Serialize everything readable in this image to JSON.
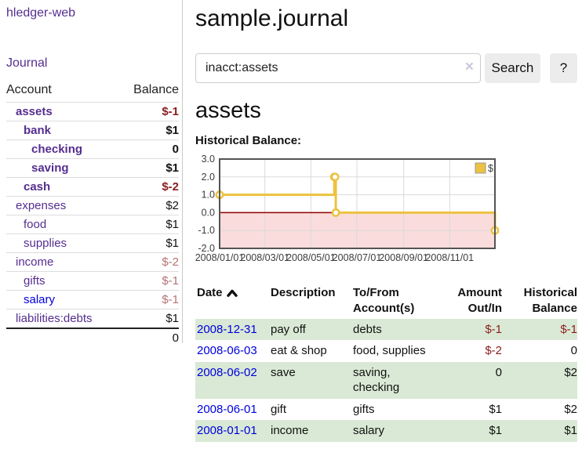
{
  "app": {
    "title": "hledger-web"
  },
  "sidebar": {
    "journal_label": "Journal",
    "table": {
      "headers": [
        "Account",
        "Balance"
      ],
      "rows": [
        {
          "name": "assets",
          "balance": "$-1",
          "level": 1,
          "bold": true,
          "blue": false
        },
        {
          "name": "bank",
          "balance": "$1",
          "level": 2,
          "bold": true,
          "blue": false
        },
        {
          "name": "checking",
          "balance": "0",
          "level": 3,
          "bold": true,
          "blue": false
        },
        {
          "name": "saving",
          "balance": "$1",
          "level": 3,
          "bold": true,
          "blue": false
        },
        {
          "name": "cash",
          "balance": "$-2",
          "level": 2,
          "bold": true,
          "blue": false
        },
        {
          "name": "expenses",
          "balance": "$2",
          "level": 1,
          "bold": false,
          "blue": false
        },
        {
          "name": "food",
          "balance": "$1",
          "level": 2,
          "bold": false,
          "blue": false
        },
        {
          "name": "supplies",
          "balance": "$1",
          "level": 2,
          "bold": false,
          "blue": false
        },
        {
          "name": "income",
          "balance": "$-2",
          "level": 1,
          "bold": false,
          "blue": false
        },
        {
          "name": "gifts",
          "balance": "$-1",
          "level": 2,
          "bold": false,
          "blue": false
        },
        {
          "name": "salary",
          "balance": "$-1",
          "level": 2,
          "bold": false,
          "blue": true
        },
        {
          "name": "liabilities:debts",
          "balance": "$1",
          "level": 1,
          "bold": false,
          "blue": false
        }
      ],
      "total": "0"
    }
  },
  "main": {
    "title": "sample.journal",
    "search": {
      "value": "inacct:assets",
      "clear_icon": "×",
      "button_label": "Search",
      "help_label": "?"
    },
    "account_heading": "assets",
    "chart_label": "Historical Balance:"
  },
  "chart_data": {
    "type": "line",
    "style": "steps",
    "title": "Historical Balance",
    "series": [
      {
        "name": "$",
        "color": "#edc240",
        "points": [
          [
            "2008-01-01",
            1
          ],
          [
            "2008-06-01",
            2
          ],
          [
            "2008-06-02",
            2
          ],
          [
            "2008-06-03",
            0
          ],
          [
            "2008-12-31",
            -1
          ]
        ]
      }
    ],
    "x_tick_labels": [
      "2008/01/01",
      "2008/03/01",
      "2008/05/01",
      "2008/07/01",
      "2008/09/01",
      "2008/11/01"
    ],
    "y_ticks": [
      3,
      2,
      1,
      0,
      -1,
      -2
    ],
    "ylim": [
      -2,
      3
    ],
    "grid": true,
    "legend": {
      "label": "$",
      "position": "top-right"
    },
    "colors": {
      "negative_region": "#fbdcdc",
      "zero_line": "#8b0000",
      "grid": "#d9d9d9",
      "border": "#545454",
      "tick_text": "#3c3c3c"
    }
  },
  "register": {
    "headers": [
      {
        "line1": "Date",
        "line2": "",
        "sort": "asc"
      },
      {
        "line1": "Description",
        "line2": ""
      },
      {
        "line1": "To/From",
        "line2": "Account(s)"
      },
      {
        "line1": "Amount",
        "line2": "Out/In"
      },
      {
        "line1": "Historical",
        "line2": "Balance"
      }
    ],
    "rows": [
      {
        "date": "2008-12-31",
        "description": "pay off",
        "accounts": "debts",
        "amount": "$-1",
        "balance": "$-1"
      },
      {
        "date": "2008-06-03",
        "description": "eat & shop",
        "accounts": "food, supplies",
        "amount": "$-2",
        "balance": "0"
      },
      {
        "date": "2008-06-02",
        "description": "save",
        "accounts": "saving, checking",
        "amount": "0",
        "balance": "$2"
      },
      {
        "date": "2008-06-01",
        "description": "gift",
        "accounts": "gifts",
        "amount": "$1",
        "balance": "$2"
      },
      {
        "date": "2008-01-01",
        "description": "income",
        "accounts": "salary",
        "amount": "$1",
        "balance": "$1"
      }
    ]
  },
  "colors": {
    "link_purple": "#552e90",
    "link_blue": "#0000dd",
    "negative_dark": "#8b1d1d",
    "negative_light": "#b57272",
    "row_green": "#d9e9d5",
    "button_bg": "#ececec"
  }
}
